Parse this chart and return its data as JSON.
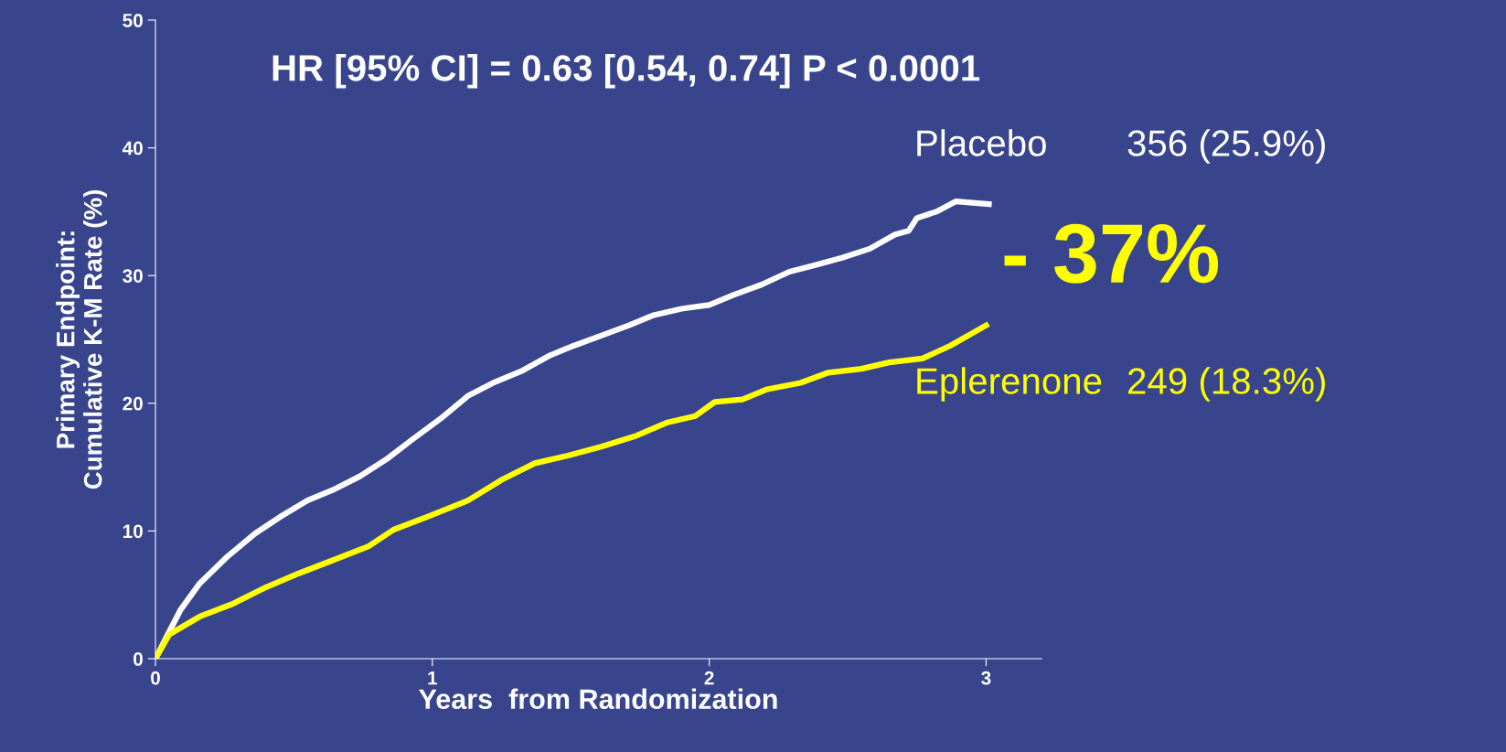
{
  "chart_data": {
    "type": "line",
    "title": "HR [95% CI] = 0.63 [0.54, 0.74] P < 0.0001",
    "xlabel": "Years  from Randomization",
    "ylabel": "Primary Endpoint:\nCumulative K-M Rate (%)",
    "xlim": [
      0,
      3.2
    ],
    "xticks": [
      0,
      1,
      2,
      3
    ],
    "ylim": [
      0,
      50
    ],
    "yticks": [
      0,
      10,
      20,
      30,
      40,
      50
    ],
    "grid": false,
    "legend": false,
    "marker": "none",
    "line_style": "solid",
    "series": [
      {
        "name": "Placebo",
        "color": "#ffffff",
        "x": [
          0,
          0.04,
          0.09,
          0.16,
          0.26,
          0.36,
          0.45,
          0.55,
          0.64,
          0.74,
          0.84,
          0.93,
          1.03,
          1.13,
          1.22,
          1.32,
          1.42,
          1.51,
          1.61,
          1.71,
          1.8,
          1.9,
          2.0,
          2.09,
          2.19,
          2.29,
          2.38,
          2.48,
          2.58,
          2.67,
          2.72,
          2.75,
          2.82,
          2.89,
          3.01
        ],
        "values": [
          0,
          1.7,
          3.8,
          5.9,
          8.0,
          9.8,
          11.1,
          12.4,
          13.2,
          14.3,
          15.7,
          17.2,
          18.8,
          20.6,
          21.6,
          22.5,
          23.7,
          24.5,
          25.3,
          26.1,
          26.9,
          27.4,
          27.7,
          28.5,
          29.3,
          30.3,
          30.8,
          31.4,
          32.1,
          33.2,
          33.5,
          34.5,
          35.0,
          35.8,
          35.6
        ]
      },
      {
        "name": "Eplerenone",
        "color": "#ffff00",
        "x": [
          0,
          0.05,
          0.16,
          0.28,
          0.4,
          0.52,
          0.64,
          0.77,
          0.86,
          0.98,
          1.13,
          1.25,
          1.37,
          1.49,
          1.61,
          1.73,
          1.85,
          1.95,
          2.02,
          2.12,
          2.21,
          2.33,
          2.43,
          2.55,
          2.65,
          2.77,
          2.87,
          3.0
        ],
        "values": [
          0,
          1.9,
          3.3,
          4.3,
          5.6,
          6.7,
          7.7,
          8.8,
          10.1,
          11.1,
          12.4,
          14.0,
          15.3,
          15.9,
          16.6,
          17.4,
          18.5,
          19.0,
          20.1,
          20.3,
          21.1,
          21.6,
          22.4,
          22.7,
          23.2,
          23.5,
          24.5,
          26.1
        ]
      }
    ],
    "annotations": [
      "356 (25.9%)",
      "249 (18.3%)",
      "- 37%"
    ]
  }
}
